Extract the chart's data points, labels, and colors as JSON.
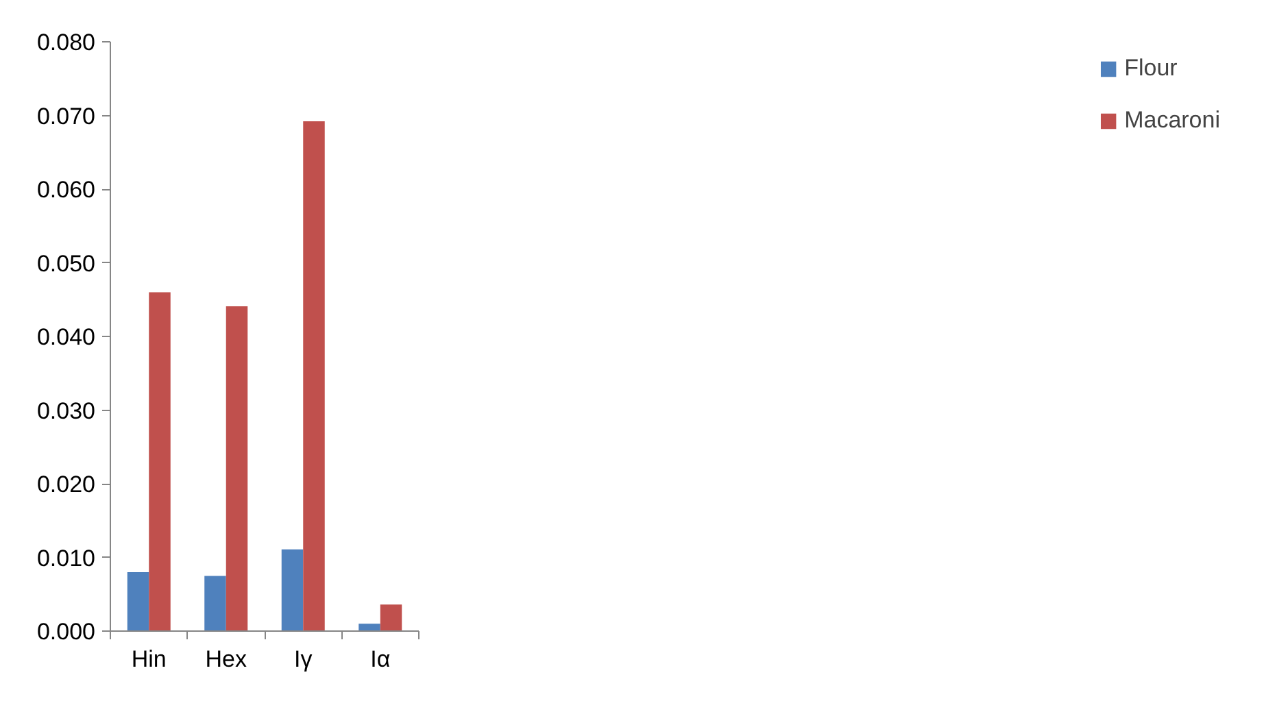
{
  "chart_data": {
    "type": "bar",
    "categories": [
      "Hin",
      "Hex",
      "Iγ",
      "Iα"
    ],
    "series": [
      {
        "name": "Flour",
        "color": "#4f81bd",
        "values": [
          0.008,
          0.0075,
          0.0111,
          0.001
        ]
      },
      {
        "name": "Macaroni",
        "color": "#c0504d",
        "values": [
          0.046,
          0.0441,
          0.0692,
          0.0036
        ]
      }
    ],
    "ylim": [
      0,
      0.08
    ],
    "yticks": [
      {
        "value": 0,
        "label": "0.000"
      },
      {
        "value": 0.01,
        "label": "0.010"
      },
      {
        "value": 0.02,
        "label": "0.020"
      },
      {
        "value": 0.03,
        "label": "0.030"
      },
      {
        "value": 0.04,
        "label": "0.040"
      },
      {
        "value": 0.05,
        "label": "0.050"
      },
      {
        "value": 0.06,
        "label": "0.060"
      },
      {
        "value": 0.07,
        "label": "0.070"
      },
      {
        "value": 0.08,
        "label": "0.080"
      }
    ],
    "grid": false,
    "legend": "right"
  }
}
